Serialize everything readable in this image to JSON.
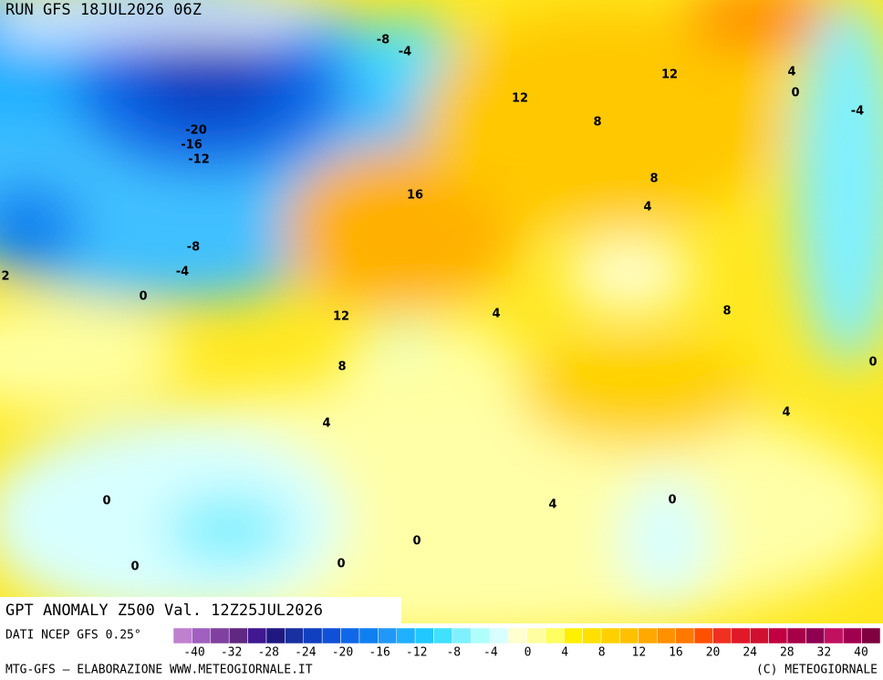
{
  "header": {
    "run": "RUN GFS 18JUL2026 06Z",
    "field": "GPT ANOMALY Z500 Val. 12Z25JUL2026",
    "source": "DATI NCEP GFS 0.25°",
    "credit": "MTG-GFS — ELABORAZIONE WWW.METEOGIORNALE.IT",
    "copyright": "(C) METEOGIORNALE"
  },
  "contour_labels": [
    -8,
    -4,
    12,
    4,
    0,
    -4,
    12,
    8,
    -20,
    -16,
    -12,
    16,
    8,
    4,
    -8,
    -4,
    2,
    0,
    12,
    4,
    8,
    8,
    0,
    4,
    4,
    0,
    4,
    0,
    0,
    0,
    0
  ],
  "colorbar": {
    "colors": [
      "#c080d0",
      "#a060c0",
      "#8040a0",
      "#602880",
      "#401890",
      "#201880",
      "#1830a0",
      "#1040c0",
      "#1050d8",
      "#1068e8",
      "#1080f0",
      "#2098f8",
      "#20b0ff",
      "#20c8ff",
      "#40e0ff",
      "#80f0ff",
      "#b0ffff",
      "#d8ffff",
      "#ffffd0",
      "#ffffa0",
      "#ffff60",
      "#fff000",
      "#ffe000",
      "#ffd000",
      "#ffc000",
      "#ffa800",
      "#ff9000",
      "#ff7800",
      "#ff5000",
      "#f03020",
      "#e01828",
      "#d01030",
      "#c00040",
      "#a80048",
      "#900050",
      "#c01060",
      "#a00050",
      "#800040"
    ],
    "ticks": [
      -40,
      -32,
      -28,
      -24,
      -20,
      -16,
      -12,
      -8,
      -4,
      0,
      4,
      8,
      12,
      16,
      20,
      24,
      28,
      32,
      40
    ]
  }
}
